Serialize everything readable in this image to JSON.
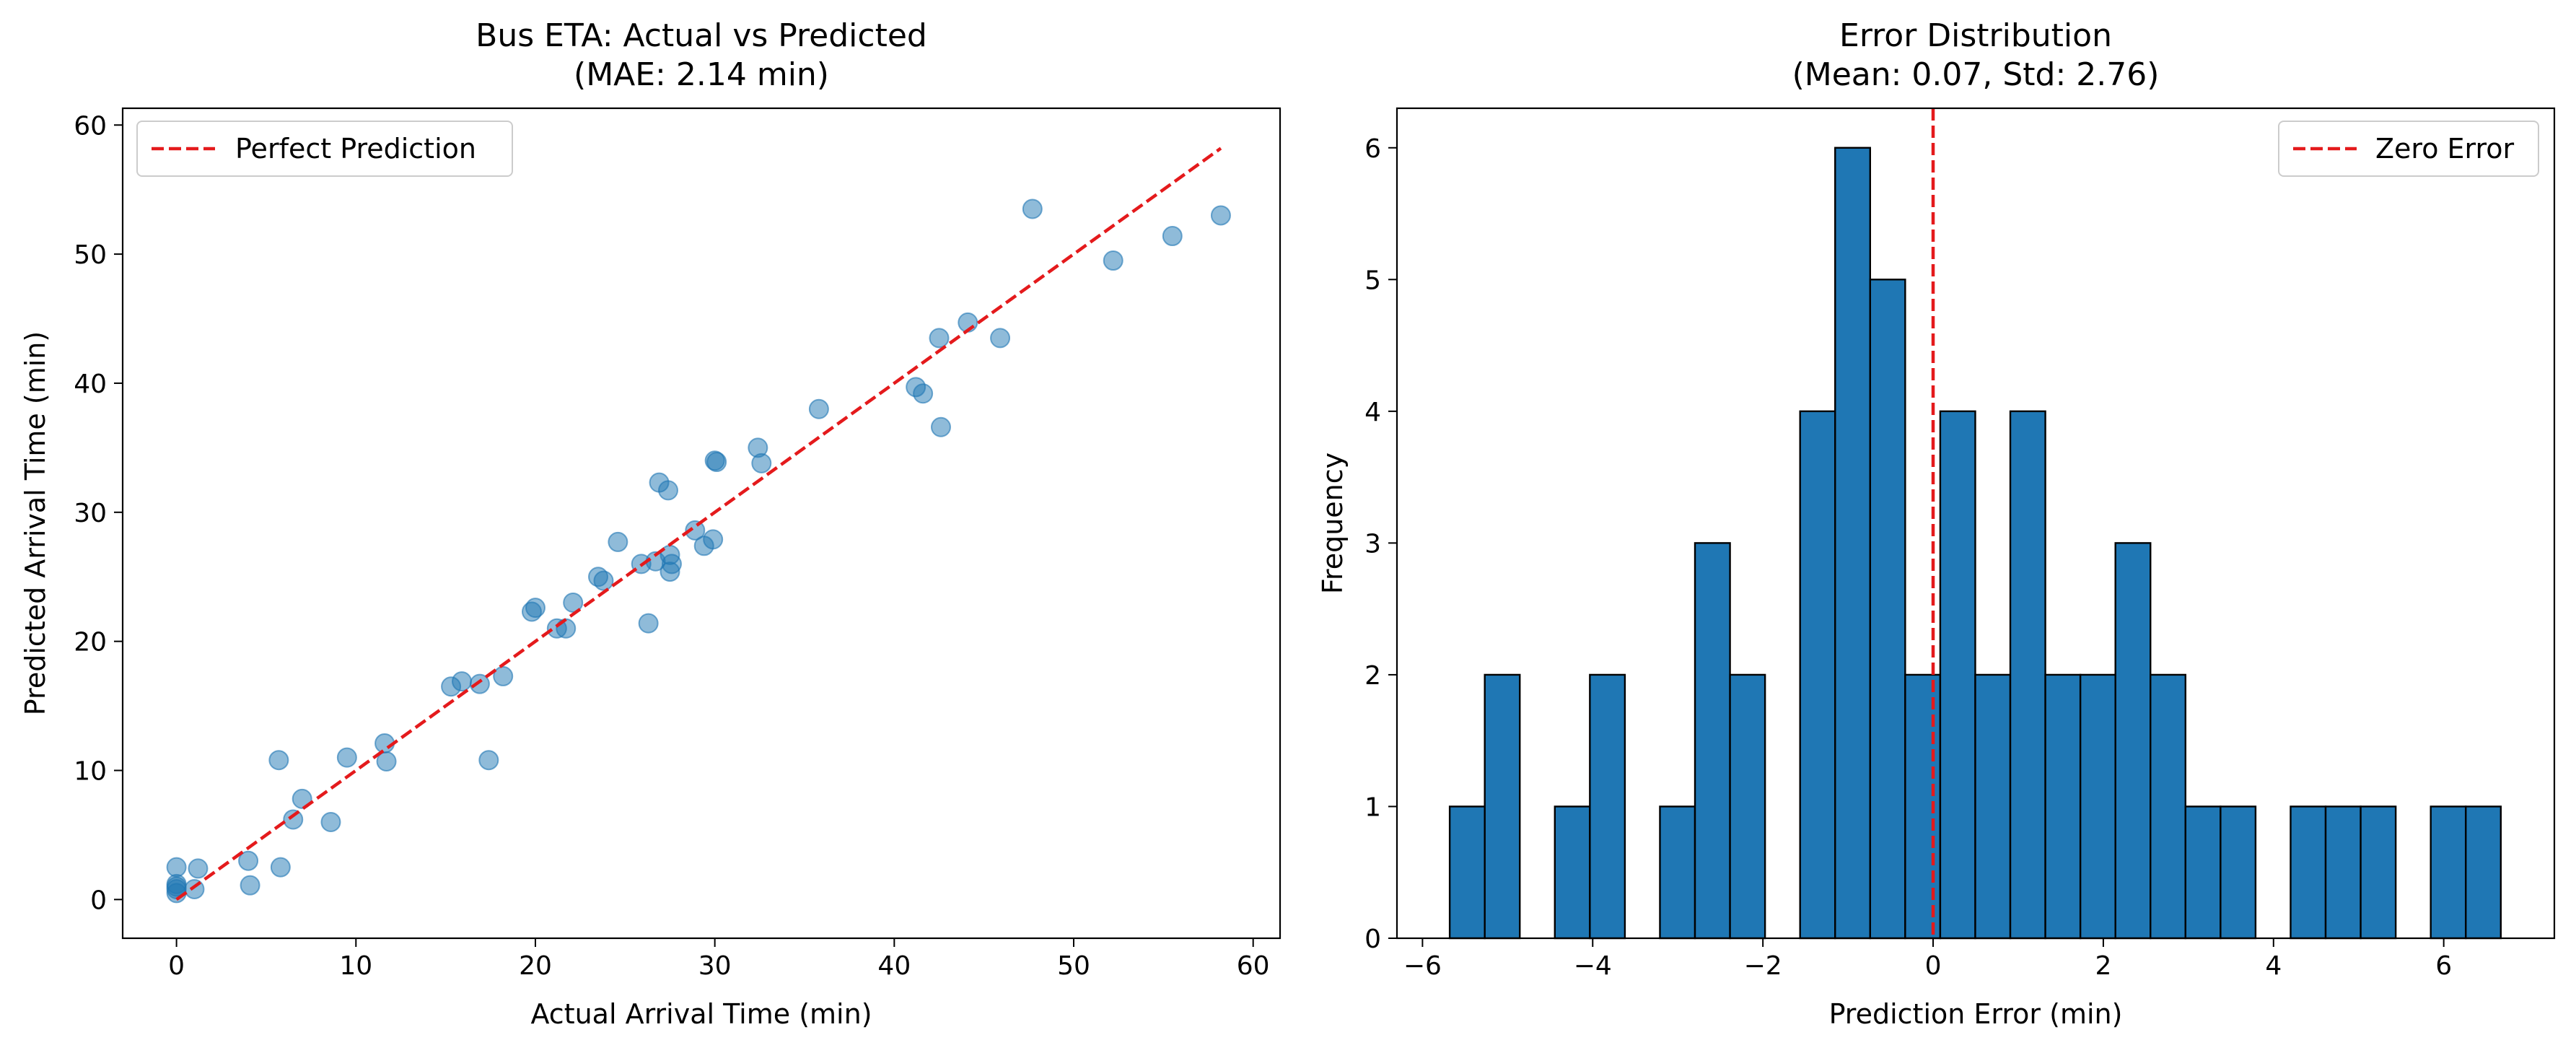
{
  "chart_data": [
    {
      "type": "scatter",
      "title": "Bus ETA: Actual vs Predicted",
      "subtitle": "(MAE: 2.14 min)",
      "xlabel": "Actual Arrival Time (min)",
      "ylabel": "Predicted Arrival Time (min)",
      "xlim": [
        -3,
        61.5
      ],
      "ylim": [
        -3,
        61.3
      ],
      "xticks": [
        0,
        10,
        20,
        30,
        40,
        50,
        60
      ],
      "yticks": [
        0,
        10,
        20,
        30,
        40,
        50,
        60
      ],
      "grid": false,
      "legend": {
        "position": "top-left",
        "entries": [
          "Perfect Prediction"
        ]
      },
      "colors": {
        "points": "#1f77b4",
        "reference": "#e41a1c"
      },
      "reference_line": {
        "name": "Perfect Prediction",
        "x": [
          0,
          58.2
        ],
        "y": [
          0,
          58.2
        ]
      },
      "series": [
        {
          "points": [
            [
              0,
              2.5
            ],
            [
              0,
              1.2
            ],
            [
              0,
              0.8
            ],
            [
              0,
              0.5
            ],
            [
              0,
              1.0
            ],
            [
              1.0,
              0.8
            ],
            [
              1.2,
              2.4
            ],
            [
              4.0,
              3.0
            ],
            [
              4.1,
              1.1
            ],
            [
              5.7,
              10.8
            ],
            [
              5.8,
              2.5
            ],
            [
              6.5,
              6.2
            ],
            [
              7.0,
              7.8
            ],
            [
              8.6,
              6.0
            ],
            [
              9.5,
              11.0
            ],
            [
              11.6,
              12.1
            ],
            [
              11.7,
              10.7
            ],
            [
              15.3,
              16.5
            ],
            [
              15.9,
              16.9
            ],
            [
              16.9,
              16.7
            ],
            [
              17.4,
              10.8
            ],
            [
              18.2,
              17.3
            ],
            [
              19.8,
              22.3
            ],
            [
              20.0,
              22.6
            ],
            [
              21.2,
              21.0
            ],
            [
              21.7,
              21.0
            ],
            [
              22.1,
              23.0
            ],
            [
              23.5,
              25.0
            ],
            [
              23.8,
              24.7
            ],
            [
              24.6,
              27.7
            ],
            [
              25.9,
              26.0
            ],
            [
              26.3,
              21.4
            ],
            [
              26.7,
              26.2
            ],
            [
              26.9,
              32.3
            ],
            [
              27.4,
              31.7
            ],
            [
              27.5,
              26.7
            ],
            [
              27.5,
              25.4
            ],
            [
              27.6,
              26.0
            ],
            [
              28.9,
              28.6
            ],
            [
              29.4,
              27.4
            ],
            [
              29.9,
              27.9
            ],
            [
              30.0,
              34.0
            ],
            [
              30.1,
              33.9
            ],
            [
              32.4,
              35.0
            ],
            [
              32.6,
              33.8
            ],
            [
              35.8,
              38.0
            ],
            [
              41.2,
              39.7
            ],
            [
              41.6,
              39.2
            ],
            [
              42.5,
              43.5
            ],
            [
              42.6,
              36.6
            ],
            [
              44.1,
              44.7
            ],
            [
              45.9,
              43.5
            ],
            [
              47.7,
              53.5
            ],
            [
              52.2,
              49.5
            ],
            [
              55.5,
              51.4
            ],
            [
              58.2,
              53.0
            ]
          ]
        }
      ]
    },
    {
      "type": "bar",
      "title": "Error Distribution",
      "subtitle": "(Mean: 0.07, Std: 2.76)",
      "xlabel": "Prediction Error (min)",
      "ylabel": "Frequency",
      "xlim": [
        -6.3,
        7.3
      ],
      "ylim": [
        0,
        6.3
      ],
      "xticks": [
        -6,
        -4,
        -2,
        0,
        2,
        4,
        6
      ],
      "xtick_labels": [
        "−6",
        "−4",
        "−2",
        "0",
        "2",
        "4",
        "6"
      ],
      "yticks": [
        0,
        1,
        2,
        3,
        4,
        5,
        6
      ],
      "grid": false,
      "legend": {
        "position": "top-right",
        "entries": [
          "Zero Error"
        ]
      },
      "colors": {
        "bars": "#1f77b4",
        "edge": "#000000",
        "reference": "#e41a1c"
      },
      "reference_line": {
        "name": "Zero Error",
        "x": 0
      },
      "bins": {
        "start": -5.68,
        "width": 0.4117
      },
      "counts": [
        1,
        2,
        0,
        1,
        2,
        0,
        1,
        3,
        2,
        0,
        4,
        6,
        5,
        2,
        4,
        2,
        4,
        2,
        2,
        3,
        2,
        1,
        1,
        0,
        1,
        1,
        1,
        0,
        1,
        1
      ]
    }
  ]
}
